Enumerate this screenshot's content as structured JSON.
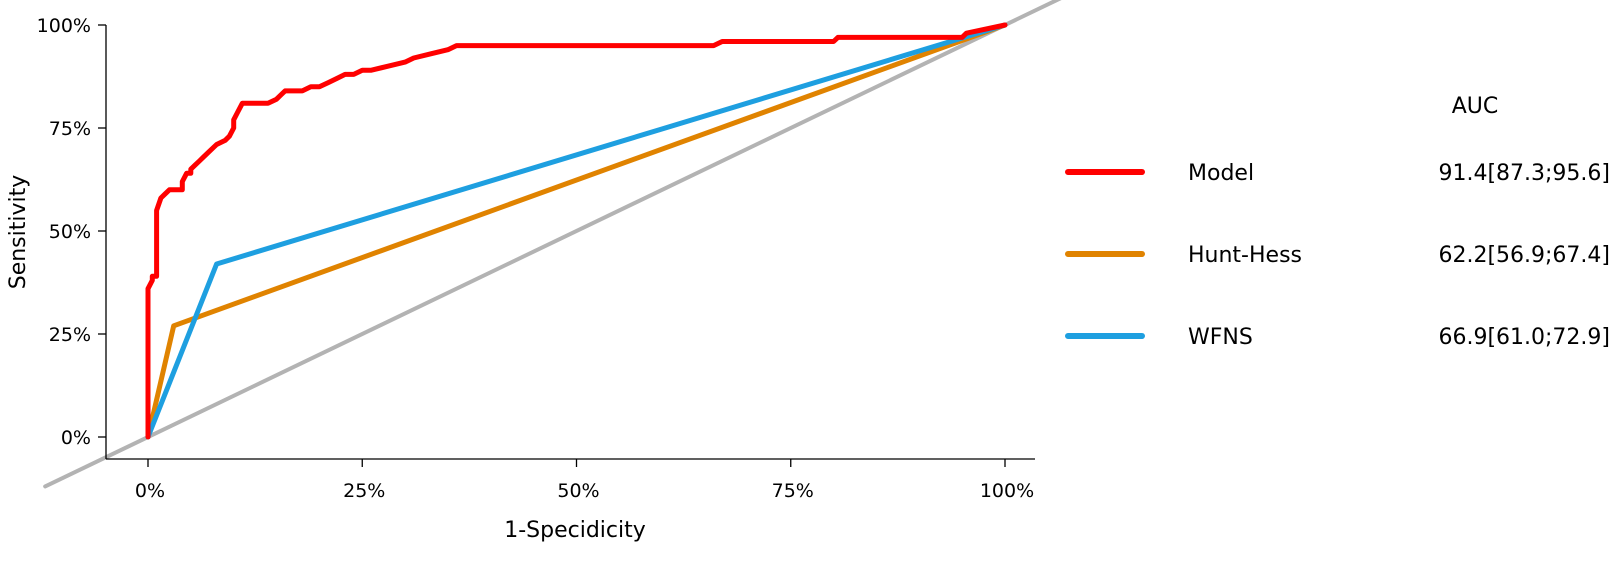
{
  "chart_data": {
    "type": "line",
    "title": "",
    "xlabel": "1-Specidicity",
    "ylabel": "Sensitivity",
    "xlim": [
      0,
      100
    ],
    "ylim": [
      0,
      100
    ],
    "x_ticks": [
      "0%",
      "25%",
      "50%",
      "75%",
      "100%"
    ],
    "y_ticks": [
      "0%",
      "25%",
      "50%",
      "75%",
      "100%"
    ],
    "legend_header": "AUC",
    "legend_placement": "right",
    "reference_line": {
      "x": [
        0,
        100
      ],
      "y": [
        0,
        100
      ],
      "color": "#b3b3b3"
    },
    "series": [
      {
        "name": "Model",
        "auc": "91.4[87.3;95.6]",
        "color": "#ff0000",
        "x": [
          0,
          0,
          0.5,
          0.5,
          1,
          1,
          1.5,
          2,
          2.5,
          3,
          4,
          4,
          4.5,
          5,
          5,
          5.5,
          6,
          6.5,
          7,
          8,
          9,
          9.5,
          10,
          10,
          10.5,
          11,
          12,
          14,
          15,
          15.5,
          16,
          17,
          18,
          19,
          20,
          21,
          22,
          23,
          24,
          25,
          26,
          28,
          30,
          31,
          33,
          35,
          36,
          38,
          40,
          50,
          60,
          66,
          67,
          70,
          75,
          80,
          80.5,
          85,
          90,
          95,
          95.5,
          100
        ],
        "y": [
          0,
          36,
          38,
          39,
          39,
          55,
          58,
          59,
          60,
          60,
          60,
          62,
          64,
          64,
          65,
          66,
          67,
          68,
          69,
          71,
          72,
          73,
          75,
          77,
          79,
          81,
          81,
          81,
          82,
          83,
          84,
          84,
          84,
          85,
          85,
          86,
          87,
          88,
          88,
          89,
          89,
          90,
          91,
          92,
          93,
          94,
          95,
          95,
          95,
          95,
          95,
          95,
          96,
          96,
          96,
          96,
          97,
          97,
          97,
          97,
          98,
          100
        ]
      },
      {
        "name": "Hunt-Hess",
        "auc": "62.2[56.9;67.4]",
        "color": "#e08300",
        "x": [
          0,
          3,
          100
        ],
        "y": [
          0,
          27,
          100
        ]
      },
      {
        "name": "WFNS",
        "auc": "66.9[61.0;72.9]",
        "color": "#1e9fe0",
        "x": [
          0,
          8,
          100
        ],
        "y": [
          0,
          42,
          100
        ]
      }
    ]
  }
}
